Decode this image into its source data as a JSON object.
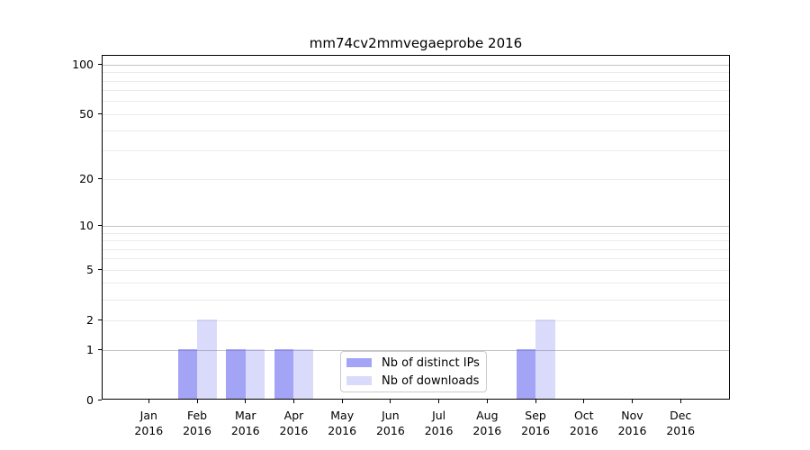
{
  "title": "mm74cv2mmvegaeprobe 2016",
  "colors": {
    "bar_ips": "rgba(99,99,239,0.58)",
    "bar_downloads": "rgba(99,99,239,0.24)",
    "grid_major": "#c3c3c3",
    "grid_minor": "#eaeaea",
    "axis": "#000000",
    "legend_border": "#cccccc"
  },
  "legend": {
    "items": [
      {
        "label": "Nb of distinct IPs",
        "color_key": "bar_ips"
      },
      {
        "label": "Nb of downloads",
        "color_key": "bar_downloads"
      }
    ]
  },
  "axes": {
    "y_tick_labels": [
      "100",
      "50",
      "20",
      "10",
      "5",
      "2",
      "1",
      "0"
    ],
    "x_months": [
      "Jan",
      "Feb",
      "Mar",
      "Apr",
      "May",
      "Jun",
      "Jul",
      "Aug",
      "Sep",
      "Oct",
      "Nov",
      "Dec"
    ],
    "x_year": "2016"
  },
  "chart_data": {
    "type": "bar",
    "title": "mm74cv2mmvegaeprobe 2016",
    "categories": [
      "Jan 2016",
      "Feb 2016",
      "Mar 2016",
      "Apr 2016",
      "May 2016",
      "Jun 2016",
      "Jul 2016",
      "Aug 2016",
      "Sep 2016",
      "Oct 2016",
      "Nov 2016",
      "Dec 2016"
    ],
    "series": [
      {
        "name": "Nb of distinct IPs",
        "values": [
          0,
          1,
          1,
          1,
          0,
          0,
          0,
          0,
          1,
          0,
          0,
          0
        ],
        "color": "#a5a5f4"
      },
      {
        "name": "Nb of downloads",
        "values": [
          0,
          2,
          1,
          1,
          0,
          0,
          0,
          0,
          2,
          0,
          0,
          0
        ],
        "color": "#dadaf9"
      }
    ],
    "xlabel": "",
    "ylabel": "",
    "yscale": "log1p",
    "ylim": [
      0,
      116
    ],
    "ytick_values": [
      100,
      50,
      20,
      10,
      5,
      2,
      1,
      0
    ],
    "grid_major_values": [
      1,
      10,
      100
    ],
    "grid_minor_values": [
      2,
      3,
      4,
      5,
      6,
      7,
      8,
      9,
      20,
      30,
      40,
      50,
      60,
      70,
      80,
      90
    ],
    "legend_position": "inside lower center",
    "bar_width_fraction": 0.4
  }
}
